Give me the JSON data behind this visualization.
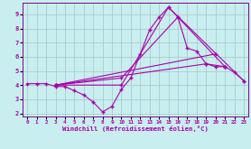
{
  "background_color": "#c8eef0",
  "line_color": "#aa00aa",
  "grid_color": "#aacccc",
  "xlabel": "Windchill (Refroidissement éolien,°C)",
  "xlim": [
    -0.5,
    23.5
  ],
  "ylim": [
    1.8,
    9.8
  ],
  "xticks": [
    0,
    1,
    2,
    3,
    4,
    5,
    6,
    7,
    8,
    9,
    10,
    11,
    12,
    13,
    14,
    15,
    16,
    17,
    18,
    19,
    20,
    21,
    22,
    23
  ],
  "yticks": [
    2,
    3,
    4,
    5,
    6,
    7,
    8,
    9
  ],
  "main_x": [
    0,
    1,
    2,
    3,
    4,
    5,
    6,
    7,
    8,
    9,
    10,
    11,
    12,
    13,
    14,
    15,
    16,
    17,
    18,
    19,
    20,
    21,
    22,
    23
  ],
  "main_y": [
    4.1,
    4.1,
    4.1,
    3.9,
    3.9,
    3.6,
    3.3,
    2.8,
    2.1,
    2.5,
    3.7,
    4.5,
    6.2,
    7.9,
    8.8,
    9.5,
    8.8,
    6.6,
    6.4,
    5.5,
    5.3,
    5.3,
    4.9,
    4.3
  ],
  "line2_x": [
    3,
    10,
    15,
    23
  ],
  "line2_y": [
    4.0,
    4.0,
    9.5,
    4.3
  ],
  "line3_x": [
    3,
    10,
    16,
    21
  ],
  "line3_y": [
    4.0,
    4.5,
    8.8,
    5.3
  ],
  "line4_x": [
    3,
    19,
    21
  ],
  "line4_y": [
    4.0,
    5.5,
    5.3
  ],
  "line5_x": [
    3,
    20
  ],
  "line5_y": [
    4.0,
    6.2
  ]
}
